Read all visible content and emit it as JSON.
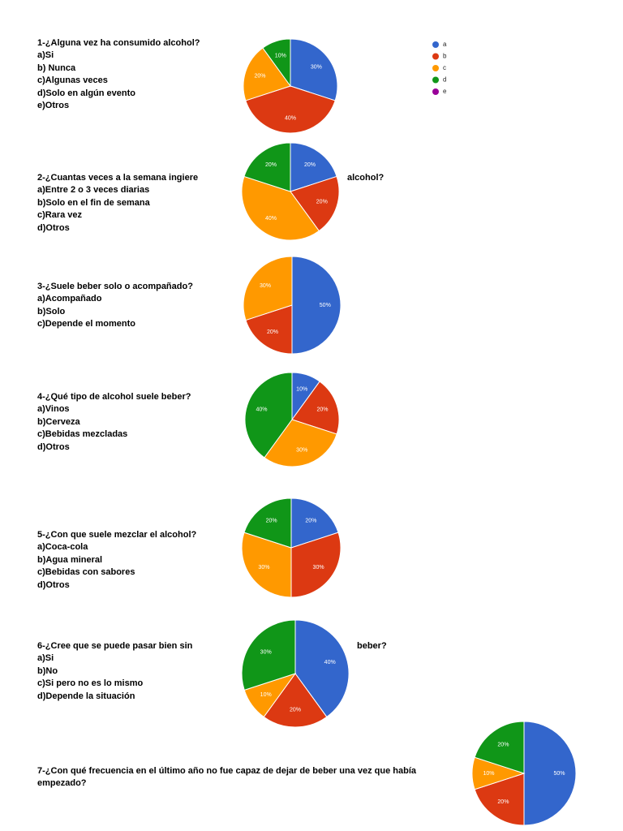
{
  "legend": {
    "labels": [
      "a",
      "b",
      "c",
      "d",
      "e"
    ],
    "colors": [
      "#3366cc",
      "#dc3912",
      "#ff9900",
      "#109618",
      "#990099"
    ],
    "position": "right"
  },
  "chart_data": [
    {
      "type": "pie",
      "question": "1-¿Alguna vez ha consumido alcohol?",
      "options": [
        "a)Si",
        "b) Nunca",
        "c)Algunas veces",
        "d)Solo en algún evento",
        "e)Otros"
      ],
      "values": [
        30,
        40,
        20,
        10
      ],
      "value_labels": [
        "30%",
        "40%",
        "20%",
        "10%"
      ]
    },
    {
      "type": "pie",
      "question": "2-¿Cuantas veces a la semana ingiere",
      "question_tail": "alcohol?",
      "options": [
        "a)Entre 2 o 3 veces diarias",
        "b)Solo en el fin de semana",
        "c)Rara vez",
        "d)Otros"
      ],
      "values": [
        20,
        20,
        40,
        20
      ],
      "value_labels": [
        "20%",
        "20%",
        "40%",
        "20%"
      ]
    },
    {
      "type": "pie",
      "question": "3-¿Suele beber solo o acompañado?",
      "options": [
        "a)Acompañado",
        "b)Solo",
        "c)Depende el momento"
      ],
      "values": [
        50,
        20,
        30
      ],
      "value_labels": [
        "50%",
        "20%",
        "30%"
      ]
    },
    {
      "type": "pie",
      "question": "4-¿Qué tipo de alcohol suele beber?",
      "options": [
        "a)Vinos",
        "b)Cerveza",
        "c)Bebidas mezcladas",
        "d)Otros"
      ],
      "values": [
        10,
        20,
        30,
        40
      ],
      "value_labels": [
        "10%",
        "20%",
        "30%",
        "40%"
      ]
    },
    {
      "type": "pie",
      "question": "5-¿Con que suele mezclar el alcohol?",
      "options": [
        "a)Coca-cola",
        "b)Agua mineral",
        "c)Bebidas con sabores",
        "d)Otros"
      ],
      "values": [
        20,
        30,
        30,
        20
      ],
      "value_labels": [
        "20%",
        "30%",
        "30%",
        "20%"
      ]
    },
    {
      "type": "pie",
      "question": "6-¿Cree que se puede pasar bien sin",
      "question_tail": "beber?",
      "options": [
        "a)Si",
        "b)No",
        "c)Si pero no es lo mismo",
        "d)Depende la situación"
      ],
      "values": [
        40,
        20,
        10,
        30
      ],
      "value_labels": [
        "40%",
        "20%",
        "10%",
        "30%"
      ]
    },
    {
      "type": "pie",
      "question": "7-¿Con qué frecuencia en el último año no fue capaz de dejar de beber una vez que había empezado?",
      "values": [
        50,
        20,
        10,
        20
      ],
      "value_labels": [
        "50%",
        "20%",
        "10%",
        "20%"
      ]
    }
  ]
}
